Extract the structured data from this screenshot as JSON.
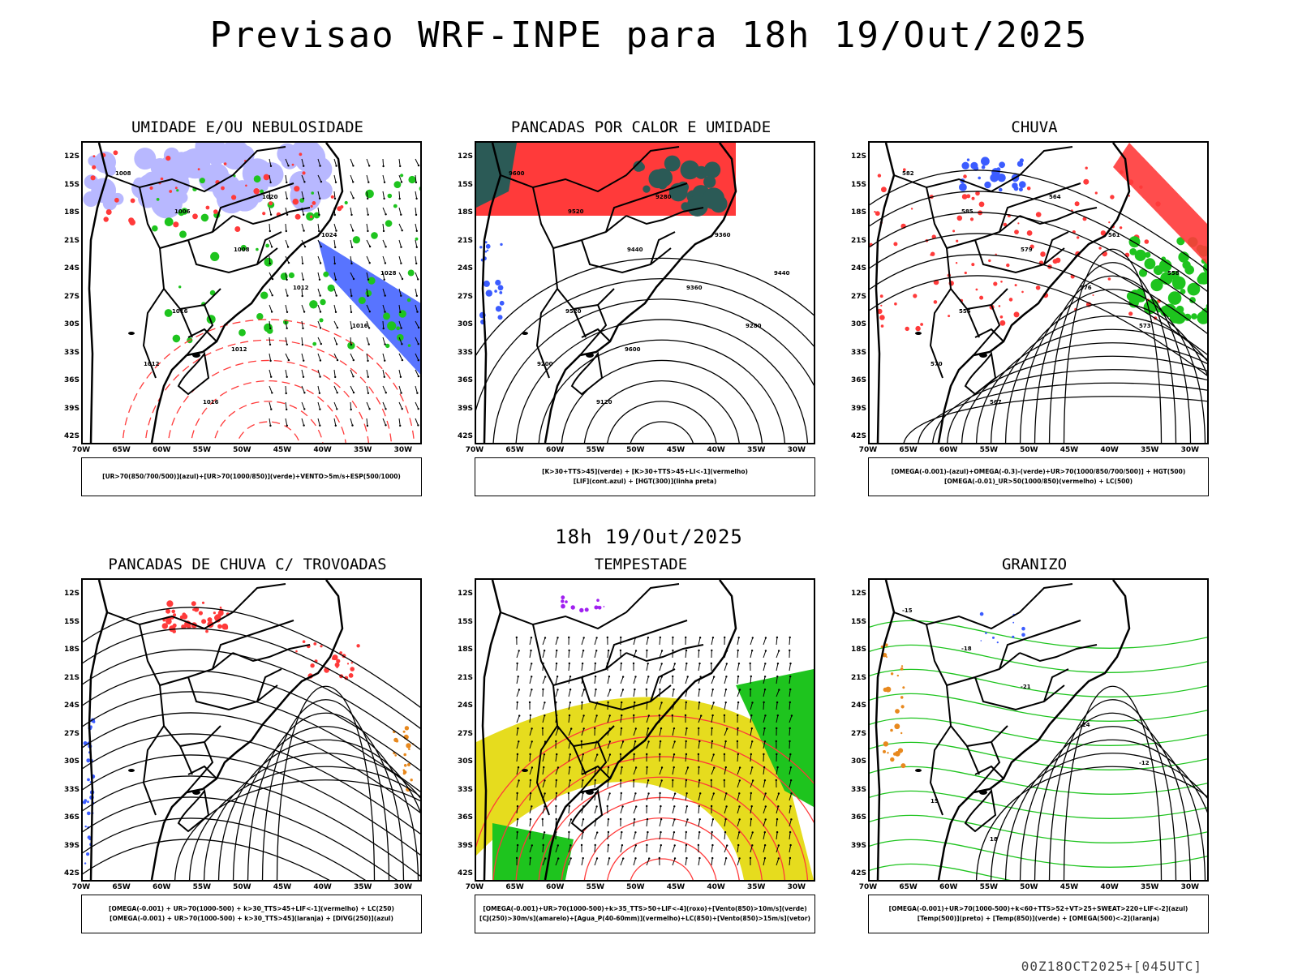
{
  "main_title": "Previsao WRF-INPE  para 18h 19/Out/2025",
  "mid_date": "18h 19/Out/2025",
  "footer_code": "00Z18OCT2025+[045UTC]",
  "lat_labels": [
    "12S",
    "15S",
    "18S",
    "21S",
    "24S",
    "27S",
    "30S",
    "33S",
    "36S",
    "39S",
    "42S"
  ],
  "lon_labels": [
    "70W",
    "65W",
    "60W",
    "55W",
    "50W",
    "45W",
    "40W",
    "35W",
    "30W"
  ],
  "colors": {
    "blue": "#3b5cff",
    "green": "#1ec41e",
    "red": "#ff3a3a",
    "lavender": "#b8b8ff",
    "darkteal": "#2b5a56",
    "yellow": "#e6dc1e",
    "orange": "#e8891e",
    "purple": "#a020f0"
  },
  "panels": [
    {
      "title": "UMIDADE E/OU NEBULOSIDADE",
      "legend_lines": [
        "[UR>70(850/700/500)](azul)+[UR>70(1000/850)](verde)+VENTO>5m/s+ESP(500/1000)"
      ],
      "contour_labels": [
        "1008",
        "1006",
        "1008",
        "1012",
        "1016",
        "1012",
        "1016",
        "1020",
        "1024",
        "1028",
        "1016",
        "1012"
      ]
    },
    {
      "title": "PANCADAS POR CALOR E UMIDADE",
      "legend_lines": [
        "[K>30+TTS>45](verde) + [K>30+TTS>45+LI<-1](vermelho)",
        "[LIF](cont.azul) + [HGT(300)](linha preta)"
      ],
      "contour_labels": [
        "9600",
        "9520",
        "9440",
        "9360",
        "9280",
        "9200",
        "9120",
        "9280",
        "9360",
        "9440",
        "9520",
        "9600"
      ]
    },
    {
      "title": "CHUVA",
      "legend_lines": [
        "[OMEGA(-0.001)-(azul)+OMEGA(-0.3)-(verde)+UR>70(1000/850/700/500)] + HGT(500)",
        "[OMEGA(-0.01)_UR>50(1000/850)(vermelho) + LC(500)"
      ],
      "contour_labels": [
        "582",
        "585",
        "579",
        "576",
        "573",
        "570",
        "567",
        "564",
        "561",
        "558",
        "555"
      ]
    },
    {
      "title": "PANCADAS DE CHUVA C/ TROVOADAS",
      "legend_lines": [
        "[OMEGA(-0.001) + UR>70(1000-500) + k>30_TTS>45+LIF<-1](vermelho) + LC(250)",
        "[OMEGA(-0.001) + UR>70(1000-500) + k>30_TTS>45](laranja) + [DIVG(250)](azul)"
      ],
      "contour_labels": []
    },
    {
      "title": "TEMPESTADE",
      "legend_lines": [
        "[OMEGA(-0.001)+UR>70(1000-500)+k>35_TTS>50+LIF<-4](roxo)+[Vento(850)>10m/s](verde)",
        "[CJ(250)>30m/s](amarelo)+[Agua_P(40-60mm)](vermelho)+LC(850)+[Vento(850)>15m/s](vetor)"
      ],
      "contour_labels": []
    },
    {
      "title": "GRANIZO",
      "legend_lines": [
        "[OMEGA(-0.001)+UR>70(1000-500)+k<60+TTS>52+VT>25+SWEAT>220+LIF<-2](azul)",
        "[Temp(500)](preto) + [Temp(850)](verde) + [OMEGA(500)<-2](laranja)"
      ],
      "contour_labels": [
        "-15",
        "-18",
        "-21",
        "-24",
        "-12",
        "15",
        "18"
      ]
    }
  ]
}
